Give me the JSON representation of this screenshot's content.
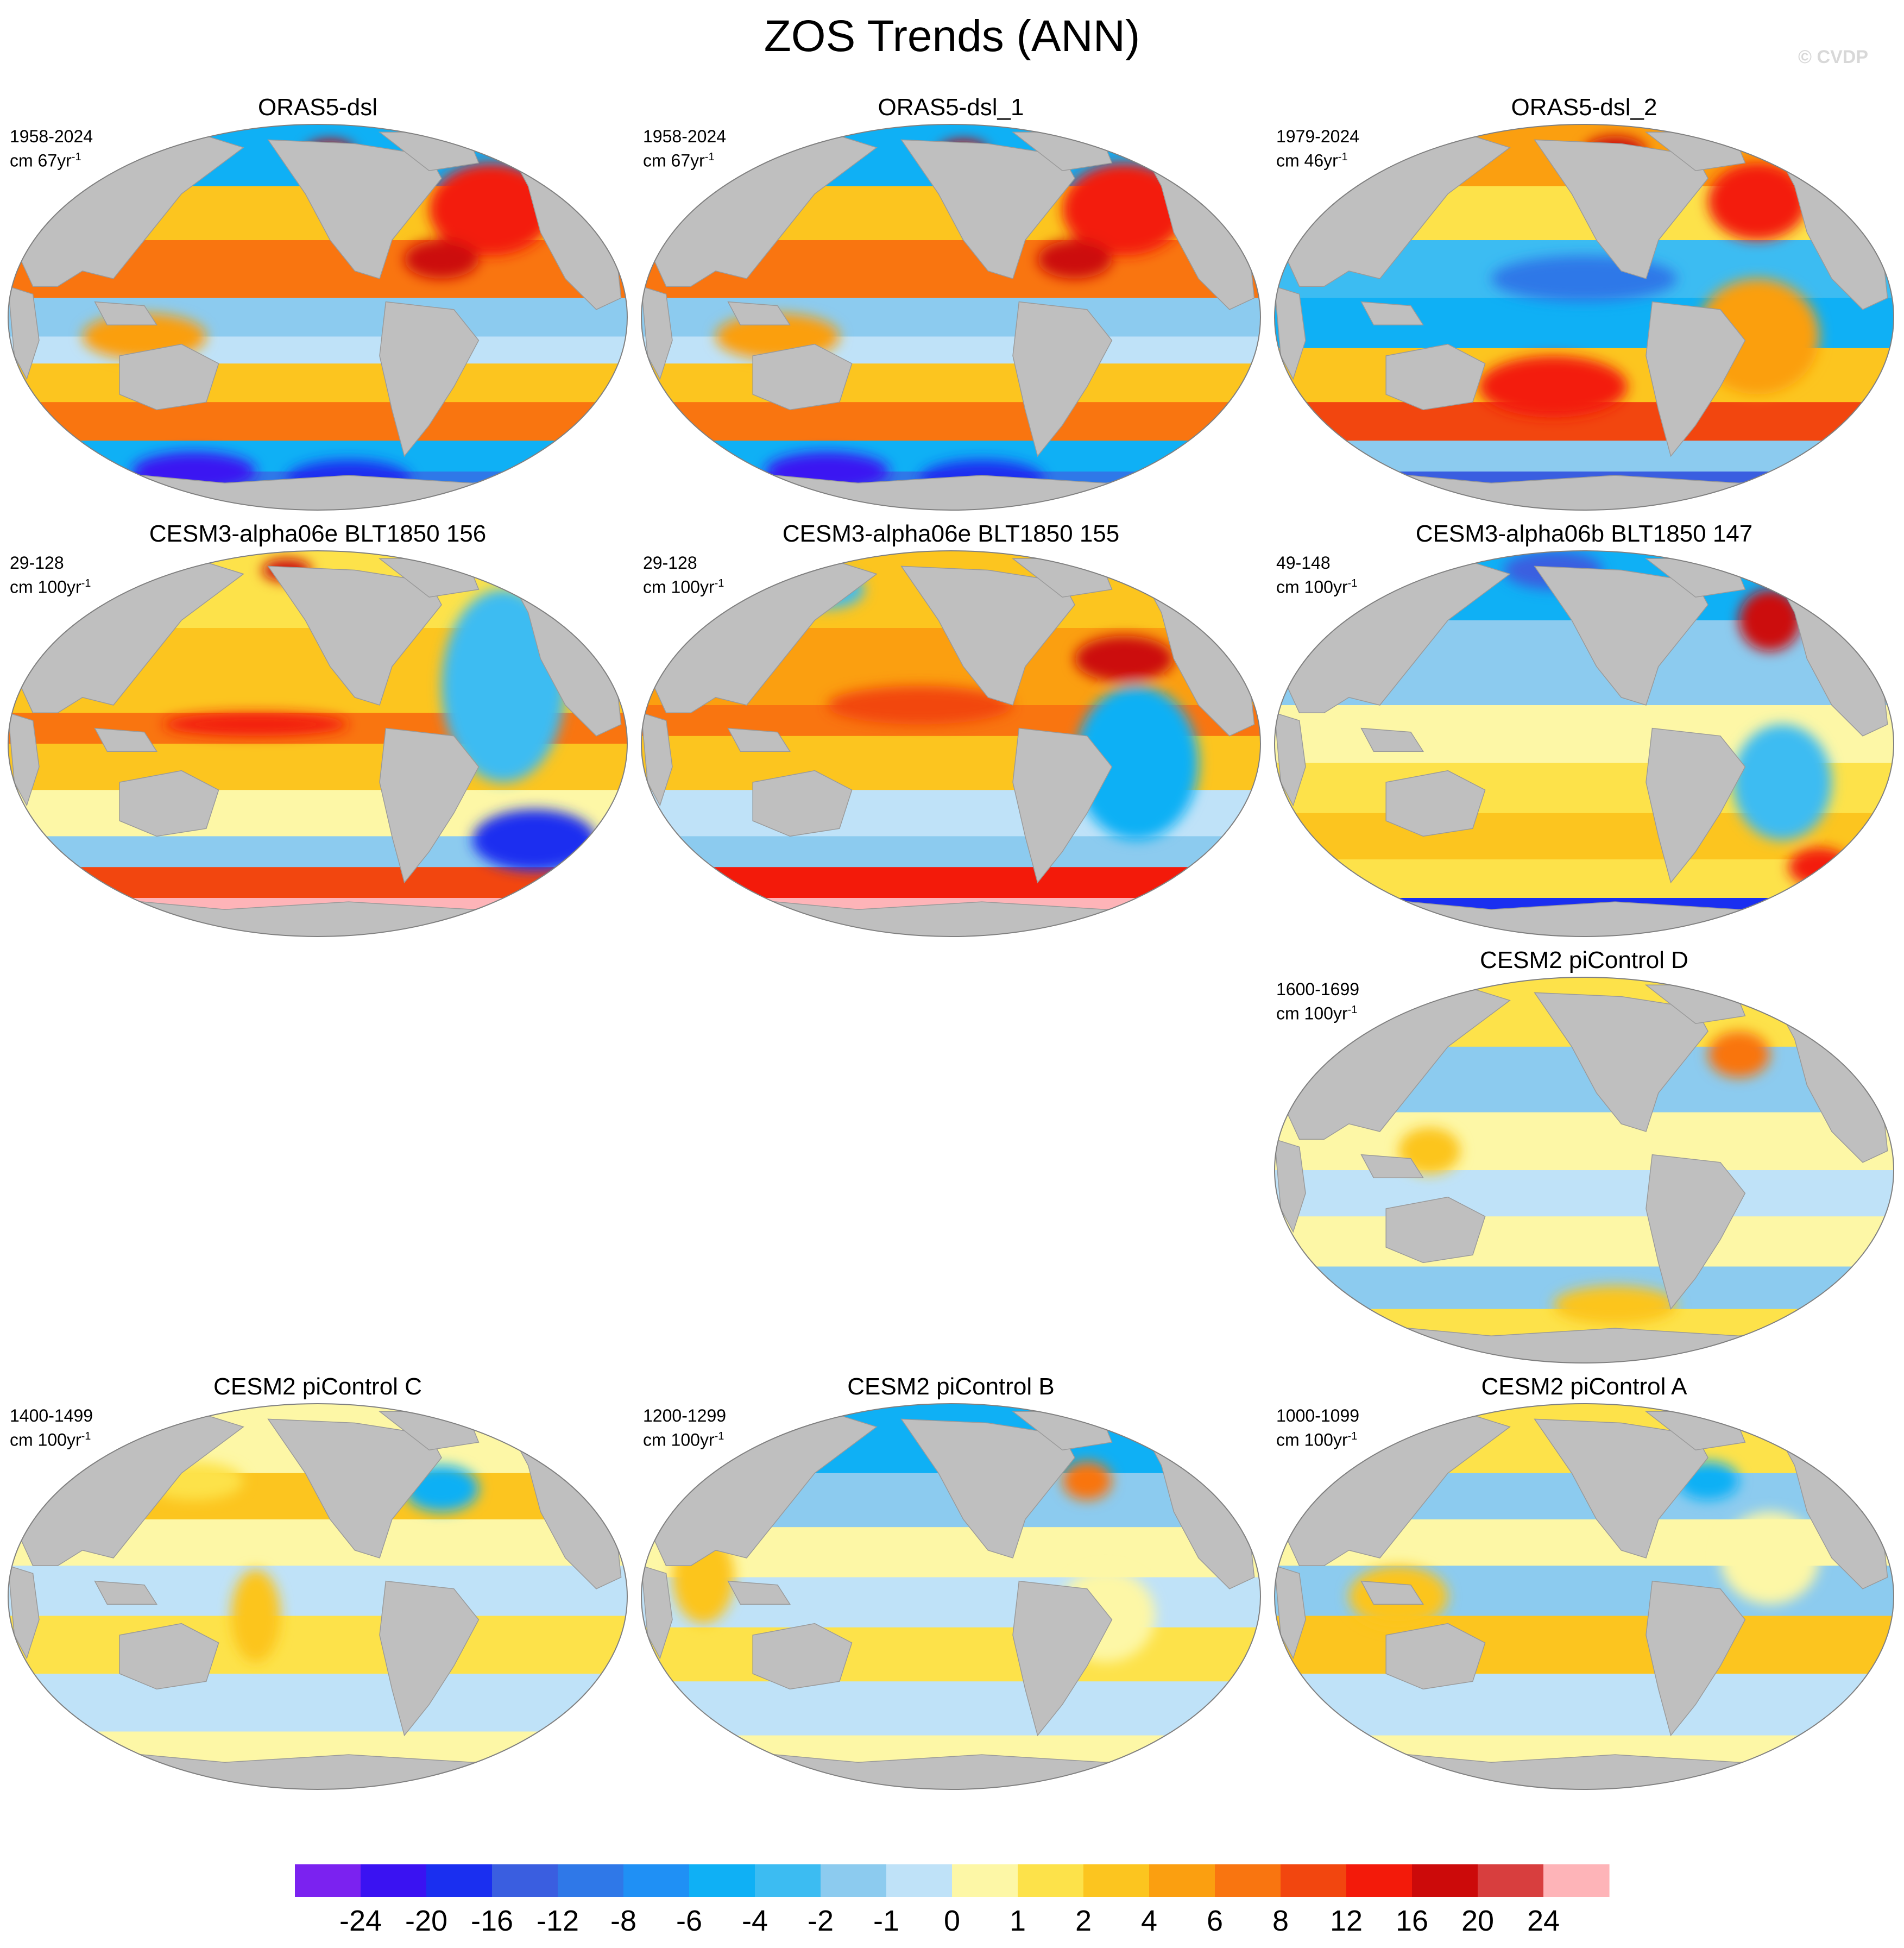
{
  "title": "ZOS Trends (ANN)",
  "watermark": "© CVDP",
  "panels": [
    {
      "id": "p1",
      "title": "ORAS5-dsl",
      "period": "1958-2024",
      "unit_prefix": "cm ",
      "unit_rate": "67yr",
      "unit_exp": "-1",
      "style": "oras_a"
    },
    {
      "id": "p2",
      "title": "ORAS5-dsl_1",
      "period": "1958-2024",
      "unit_prefix": "cm ",
      "unit_rate": "67yr",
      "unit_exp": "-1",
      "style": "oras_a"
    },
    {
      "id": "p3",
      "title": "ORAS5-dsl_2",
      "period": "1979-2024",
      "unit_prefix": "cm ",
      "unit_rate": "46yr",
      "unit_exp": "-1",
      "style": "oras_b"
    },
    {
      "id": "p4",
      "title": "CESM3-alpha06e BLT1850 156",
      "period": "29-128",
      "unit_prefix": "cm ",
      "unit_rate": "100yr",
      "unit_exp": "-1",
      "style": "cesm3_a"
    },
    {
      "id": "p5",
      "title": "CESM3-alpha06e BLT1850 155",
      "period": "29-128",
      "unit_prefix": "cm ",
      "unit_rate": "100yr",
      "unit_exp": "-1",
      "style": "cesm3_b"
    },
    {
      "id": "p6",
      "title": "CESM3-alpha06b BLT1850 147",
      "period": "49-148",
      "unit_prefix": "cm ",
      "unit_rate": "100yr",
      "unit_exp": "-1",
      "style": "cesm3_c"
    },
    {
      "id": "p7",
      "title": "CESM2 piControl D",
      "period": "1600-1699",
      "unit_prefix": "cm ",
      "unit_rate": "100yr",
      "unit_exp": "-1",
      "style": "pi_d"
    },
    {
      "id": "p8",
      "title": "CESM2 piControl C",
      "period": "1400-1499",
      "unit_prefix": "cm ",
      "unit_rate": "100yr",
      "unit_exp": "-1",
      "style": "pi_c"
    },
    {
      "id": "p9",
      "title": "CESM2 piControl B",
      "period": "1200-1299",
      "unit_prefix": "cm ",
      "unit_rate": "100yr",
      "unit_exp": "-1",
      "style": "pi_b"
    },
    {
      "id": "p10",
      "title": "CESM2 piControl A",
      "period": "1000-1099",
      "unit_prefix": "cm ",
      "unit_rate": "100yr",
      "unit_exp": "-1",
      "style": "pi_a"
    }
  ],
  "colorbar": {
    "labels": [
      "-24",
      "-20",
      "-16",
      "-12",
      "-8",
      "-6",
      "-4",
      "-2",
      "-1",
      "0",
      "1",
      "2",
      "4",
      "6",
      "8",
      "12",
      "16",
      "20",
      "24"
    ],
    "colors": [
      "#7b22f0",
      "#3a12f2",
      "#1a2ff0",
      "#3a5ee0",
      "#2f78e8",
      "#1f90f5",
      "#0fb0f5",
      "#3cbcf2",
      "#8ccbef",
      "#bfe2f8",
      "#fdf7a6",
      "#fde24a",
      "#fcc51f",
      "#fb9f10",
      "#f97510",
      "#f2460f",
      "#f31a0a",
      "#cc0a0a",
      "#d83e3e",
      "#feb4b8"
    ],
    "land_color": "#bfbfbf",
    "edge_color": "#808080"
  }
}
